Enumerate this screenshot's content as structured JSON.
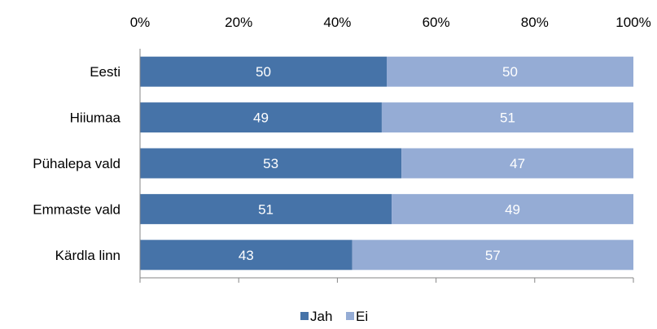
{
  "chart_data": {
    "type": "bar",
    "orientation": "horizontal",
    "stacked": "percent",
    "categories": [
      "Eesti",
      "Hiiumaa",
      "Pühalepa vald",
      "Emmaste vald",
      "Kärdla linn"
    ],
    "series": [
      {
        "name": "Jah",
        "values": [
          50,
          49,
          53,
          51,
          43
        ],
        "color": "#4673a8"
      },
      {
        "name": "Ei",
        "values": [
          50,
          51,
          47,
          49,
          57
        ],
        "color": "#95acd5"
      }
    ],
    "xaxis": {
      "position": "top",
      "range": [
        0,
        100
      ],
      "ticks": [
        0,
        20,
        40,
        60,
        80,
        100
      ],
      "tick_labels": [
        "0%",
        "20%",
        "40%",
        "60%",
        "80%",
        "100%"
      ]
    },
    "data_labels": true,
    "grid": false,
    "legend": "bottom"
  }
}
